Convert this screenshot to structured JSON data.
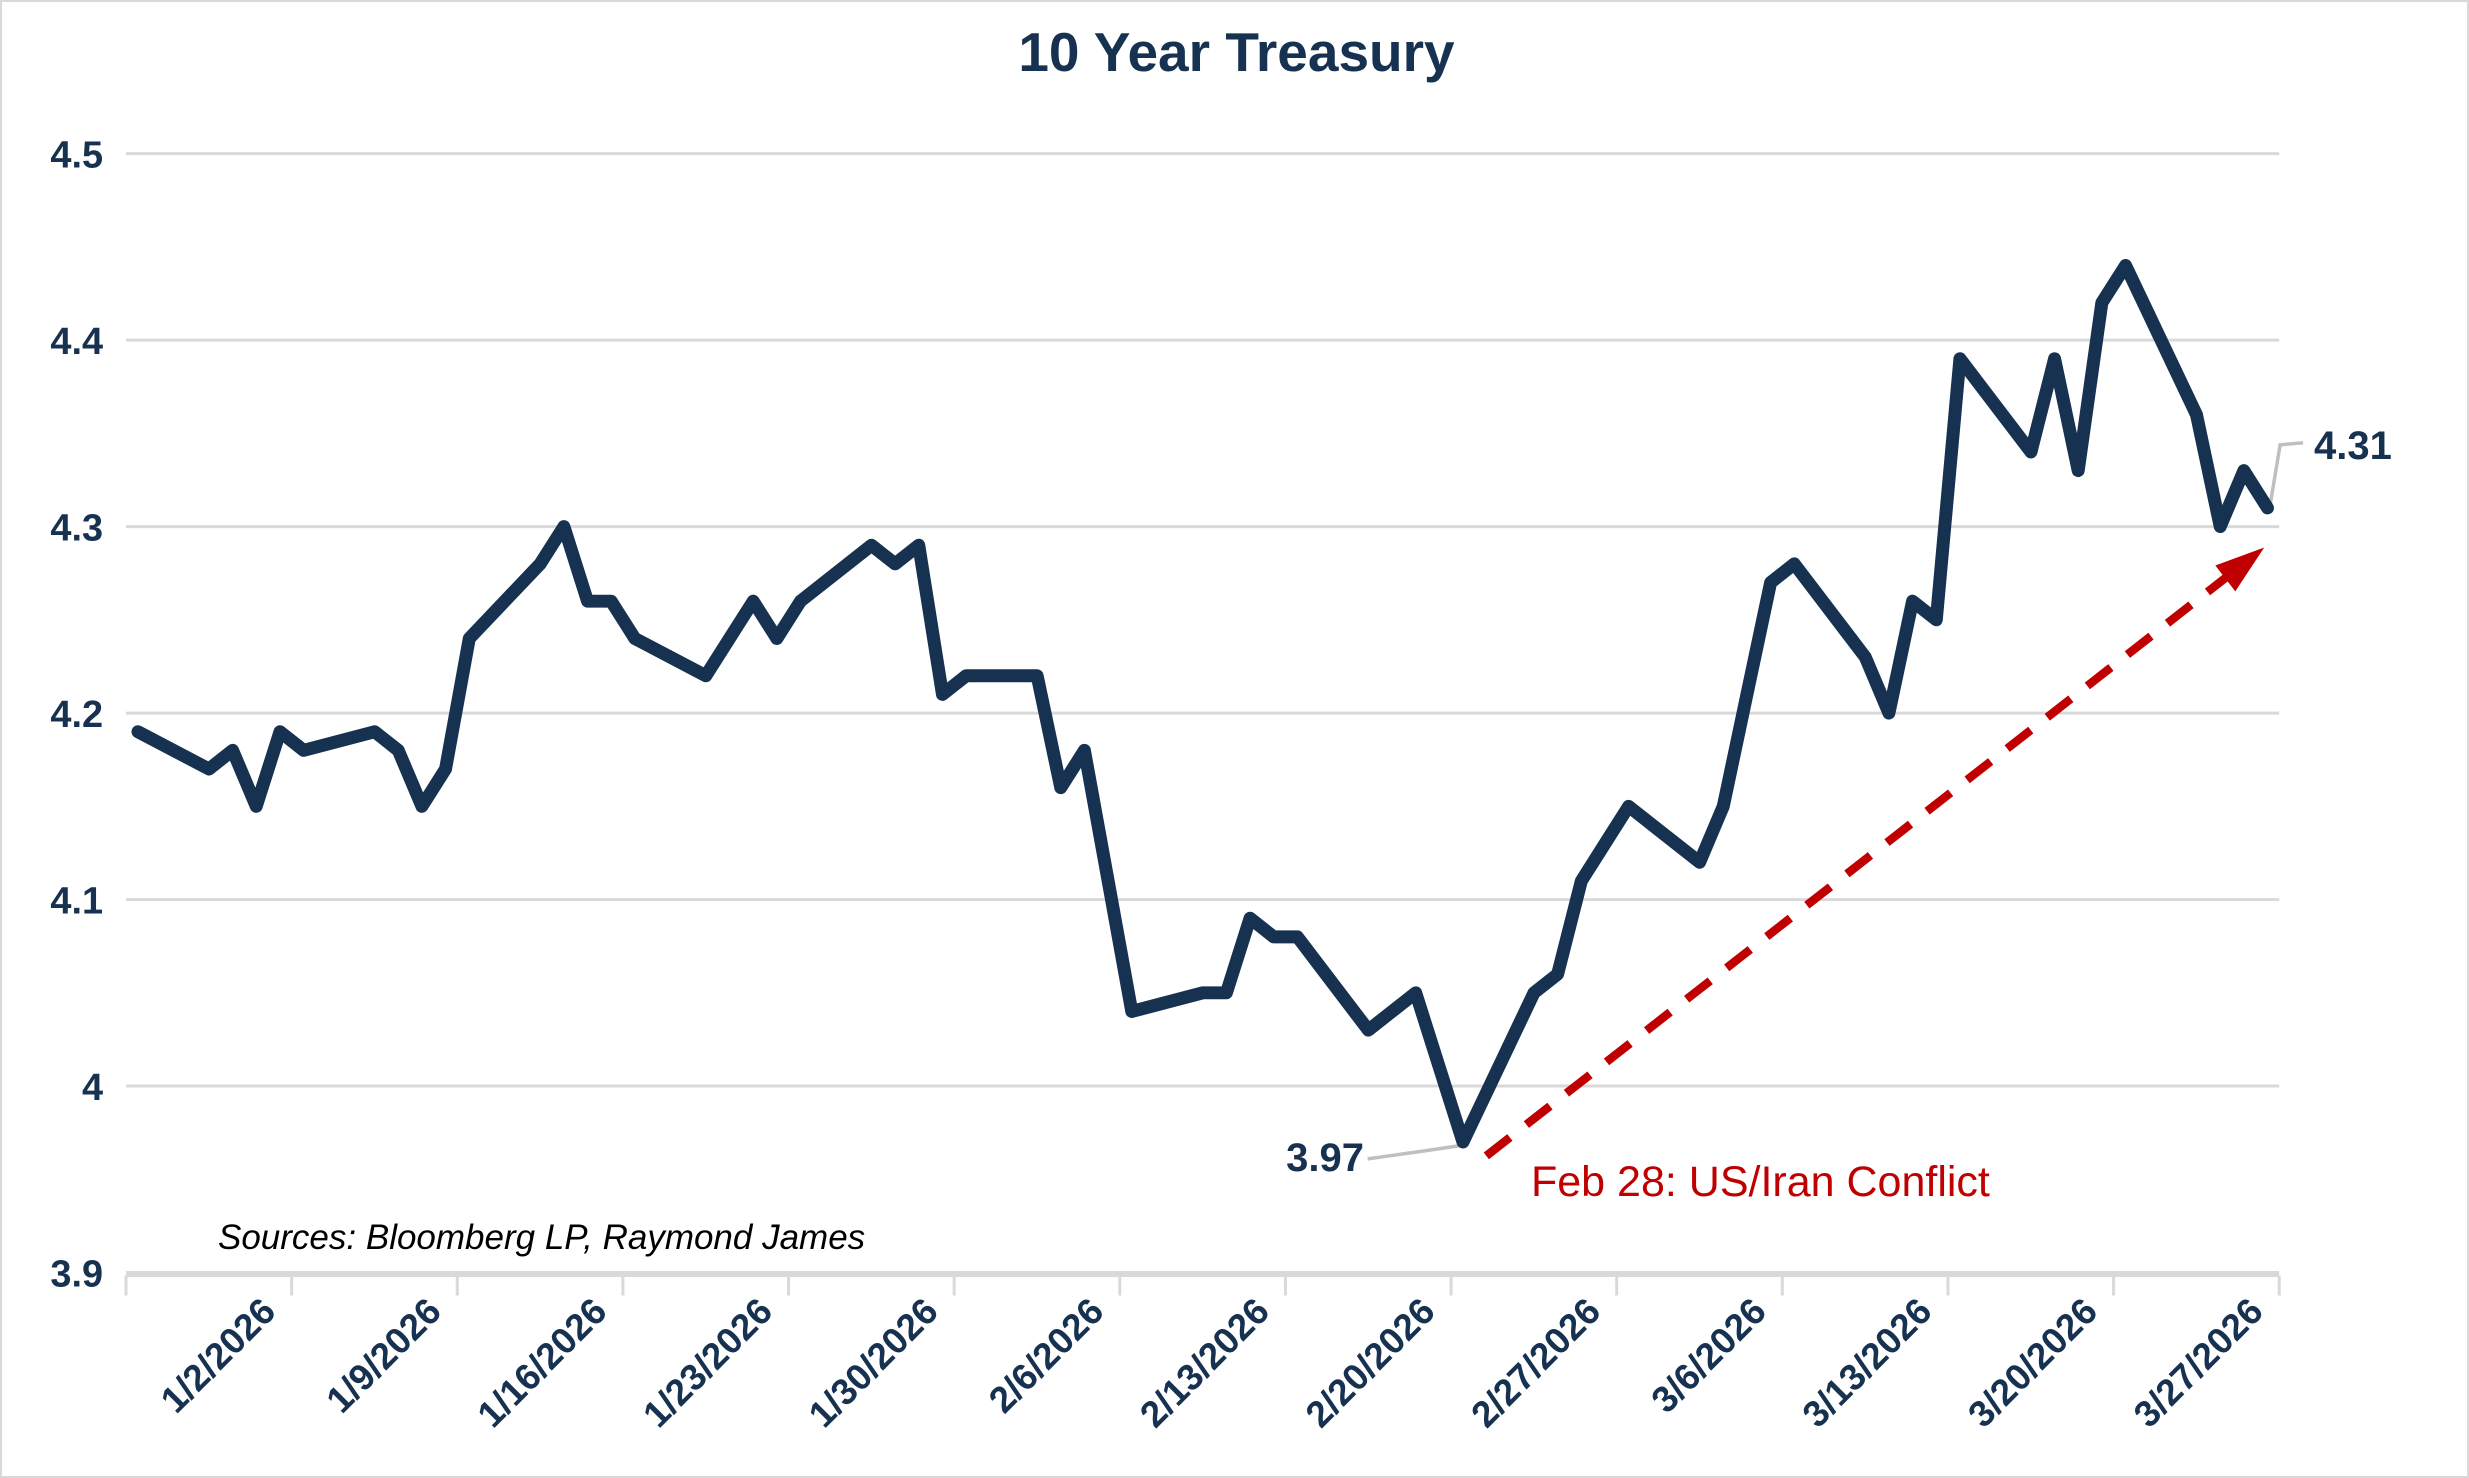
{
  "title": "10 Year Treasury",
  "source_note": "Sources: Bloomberg LP, Raymond James",
  "colors": {
    "line": "#163250",
    "text_navy": "#163250",
    "annotation_red": "#c00000",
    "gridline": "#d9d9d9",
    "leader": "#bfbfbf",
    "background": "#ffffff"
  },
  "chart_data": {
    "type": "line",
    "title": "10 Year Treasury",
    "xlabel": "",
    "ylabel": "",
    "ylim": [
      3.9,
      4.5
    ],
    "grid": "horizontal",
    "legend": "none",
    "y_ticks": [
      {
        "label": "4.5",
        "value": 4.5
      },
      {
        "label": "4.4",
        "value": 4.4
      },
      {
        "label": "4.3",
        "value": 4.3
      },
      {
        "label": "4.2",
        "value": 4.2
      },
      {
        "label": "4.1",
        "value": 4.1
      },
      {
        "label": "4",
        "value": 4.0
      },
      {
        "label": "3.9",
        "value": 3.9
      }
    ],
    "x_tick_labels": [
      "1/2/2026",
      "1/9/2026",
      "1/16/2026",
      "1/23/2026",
      "1/30/2026",
      "2/6/2026",
      "2/13/2026",
      "2/20/2026",
      "2/27/2026",
      "3/6/2026",
      "3/13/2026",
      "3/20/2026",
      "3/27/2026"
    ],
    "series": [
      {
        "name": "10 Year Treasury",
        "points": [
          {
            "date": "1/2/2026",
            "value": 4.19
          },
          {
            "date": "1/5/2026",
            "value": 4.17
          },
          {
            "date": "1/6/2026",
            "value": 4.18
          },
          {
            "date": "1/7/2026",
            "value": 4.15
          },
          {
            "date": "1/8/2026",
            "value": 4.19
          },
          {
            "date": "1/9/2026",
            "value": 4.18
          },
          {
            "date": "1/12/2026",
            "value": 4.19
          },
          {
            "date": "1/13/2026",
            "value": 4.18
          },
          {
            "date": "1/14/2026",
            "value": 4.15
          },
          {
            "date": "1/15/2026",
            "value": 4.17
          },
          {
            "date": "1/16/2026",
            "value": 4.24
          },
          {
            "date": "1/19/2026",
            "value": 4.28
          },
          {
            "date": "1/20/2026",
            "value": 4.3
          },
          {
            "date": "1/21/2026",
            "value": 4.26
          },
          {
            "date": "1/22/2026",
            "value": 4.26
          },
          {
            "date": "1/23/2026",
            "value": 4.24
          },
          {
            "date": "1/26/2026",
            "value": 4.22
          },
          {
            "date": "1/27/2026",
            "value": 4.24
          },
          {
            "date": "1/28/2026",
            "value": 4.26
          },
          {
            "date": "1/29/2026",
            "value": 4.24
          },
          {
            "date": "1/30/2026",
            "value": 4.26
          },
          {
            "date": "2/2/2026",
            "value": 4.29
          },
          {
            "date": "2/3/2026",
            "value": 4.28
          },
          {
            "date": "2/4/2026",
            "value": 4.29
          },
          {
            "date": "2/5/2026",
            "value": 4.21
          },
          {
            "date": "2/6/2026",
            "value": 4.22
          },
          {
            "date": "2/9/2026",
            "value": 4.22
          },
          {
            "date": "2/10/2026",
            "value": 4.16
          },
          {
            "date": "2/11/2026",
            "value": 4.18
          },
          {
            "date": "2/12/2026",
            "value": 4.11
          },
          {
            "date": "2/13/2026",
            "value": 4.04
          },
          {
            "date": "2/16/2026",
            "value": 4.05
          },
          {
            "date": "2/17/2026",
            "value": 4.05
          },
          {
            "date": "2/18/2026",
            "value": 4.09
          },
          {
            "date": "2/19/2026",
            "value": 4.08
          },
          {
            "date": "2/20/2026",
            "value": 4.08
          },
          {
            "date": "2/23/2026",
            "value": 4.03
          },
          {
            "date": "2/24/2026",
            "value": 4.04
          },
          {
            "date": "2/25/2026",
            "value": 4.05
          },
          {
            "date": "2/26/2026",
            "value": 4.01
          },
          {
            "date": "2/27/2026",
            "value": 3.97
          },
          {
            "date": "3/2/2026",
            "value": 4.05
          },
          {
            "date": "3/3/2026",
            "value": 4.06
          },
          {
            "date": "3/4/2026",
            "value": 4.11
          },
          {
            "date": "3/5/2026",
            "value": 4.13
          },
          {
            "date": "3/6/2026",
            "value": 4.15
          },
          {
            "date": "3/9/2026",
            "value": 4.12
          },
          {
            "date": "3/10/2026",
            "value": 4.15
          },
          {
            "date": "3/11/2026",
            "value": 4.21
          },
          {
            "date": "3/12/2026",
            "value": 4.27
          },
          {
            "date": "3/13/2026",
            "value": 4.28
          },
          {
            "date": "3/16/2026",
            "value": 4.23
          },
          {
            "date": "3/17/2026",
            "value": 4.2
          },
          {
            "date": "3/18/2026",
            "value": 4.26
          },
          {
            "date": "3/19/2026",
            "value": 4.25
          },
          {
            "date": "3/20/2026",
            "value": 4.39
          },
          {
            "date": "3/23/2026",
            "value": 4.34
          },
          {
            "date": "3/24/2026",
            "value": 4.39
          },
          {
            "date": "3/25/2026",
            "value": 4.33
          },
          {
            "date": "3/26/2026",
            "value": 4.42
          },
          {
            "date": "3/27/2026",
            "value": 4.44
          },
          {
            "date": "3/30/2026",
            "value": 4.36
          },
          {
            "date": "3/31/2026",
            "value": 4.3
          },
          {
            "date": "4/1/2026",
            "value": 4.33
          },
          {
            "date": "4/2/2026",
            "value": 4.31
          }
        ]
      }
    ],
    "annotations": {
      "min_label": {
        "text": "3.97",
        "date": "2/27/2026",
        "value": 3.97
      },
      "last_label": {
        "text": "4.31",
        "date": "4/2/2026",
        "value": 4.31
      },
      "event": {
        "text": "Feb 28: US/Iran Conflict"
      }
    }
  }
}
